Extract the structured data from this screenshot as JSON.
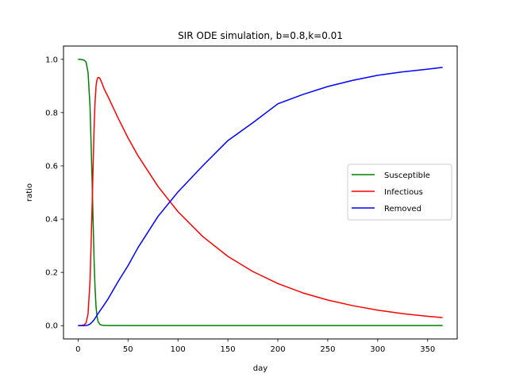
{
  "chart_data": {
    "type": "line",
    "title": "SIR ODE simulation, b=0.8,k=0.01",
    "xlabel": "day",
    "ylabel": "ratio",
    "xlim": [
      -14.6,
      379.6
    ],
    "ylim": [
      -0.05,
      1.05
    ],
    "xticks": [
      0,
      50,
      100,
      150,
      200,
      250,
      300,
      350
    ],
    "yticks": [
      0.0,
      0.2,
      0.4,
      0.6,
      0.8,
      1.0
    ],
    "xtick_labels": [
      "0",
      "50",
      "100",
      "150",
      "200",
      "250",
      "300",
      "350"
    ],
    "ytick_labels": [
      "0.0",
      "0.2",
      "0.4",
      "0.6",
      "0.8",
      "1.0"
    ],
    "grid": false,
    "legend_position": "center-right",
    "series": [
      {
        "name": "Susceptible",
        "color": "#008000",
        "x": [
          0,
          2,
          4,
          6,
          8,
          10,
          12,
          14,
          16,
          17,
          18,
          19,
          20,
          22,
          24,
          26,
          28,
          30,
          40,
          60,
          100,
          150,
          200,
          250,
          300,
          365
        ],
        "y": [
          1.0,
          1.0,
          0.999,
          0.997,
          0.99,
          0.95,
          0.82,
          0.55,
          0.25,
          0.14,
          0.07,
          0.035,
          0.015,
          0.004,
          0.0015,
          0.0008,
          0.0005,
          0.0004,
          0.0003,
          0.0003,
          0.0003,
          0.0003,
          0.0003,
          0.0003,
          0.0003,
          0.0003
        ]
      },
      {
        "name": "Infectious",
        "color": "#ff0000",
        "x": [
          0,
          4,
          6,
          8,
          10,
          12,
          14,
          16,
          17,
          18,
          19,
          20,
          21,
          22,
          24,
          26,
          30,
          40,
          50,
          60,
          80,
          100,
          125,
          150,
          175,
          200,
          225,
          250,
          275,
          300,
          325,
          350,
          365
        ],
        "y": [
          0.0,
          0.001,
          0.003,
          0.01,
          0.045,
          0.17,
          0.44,
          0.74,
          0.84,
          0.9,
          0.925,
          0.932,
          0.932,
          0.927,
          0.91,
          0.89,
          0.86,
          0.78,
          0.705,
          0.638,
          0.523,
          0.428,
          0.334,
          0.26,
          0.203,
          0.158,
          0.123,
          0.096,
          0.075,
          0.058,
          0.045,
          0.035,
          0.03
        ]
      },
      {
        "name": "Removed",
        "color": "#0000ff",
        "x": [
          0,
          6,
          8,
          10,
          12,
          14,
          16,
          18,
          20,
          22,
          25,
          30,
          40,
          50,
          60,
          80,
          100,
          125,
          150,
          175,
          200,
          225,
          250,
          275,
          300,
          325,
          350,
          365
        ],
        "y": [
          0.0,
          0.0,
          0.0005,
          0.002,
          0.006,
          0.013,
          0.022,
          0.033,
          0.045,
          0.056,
          0.072,
          0.1,
          0.165,
          0.225,
          0.293,
          0.41,
          0.502,
          0.601,
          0.695,
          0.762,
          0.833,
          0.868,
          0.898,
          0.921,
          0.94,
          0.953,
          0.963,
          0.97
        ]
      }
    ]
  }
}
